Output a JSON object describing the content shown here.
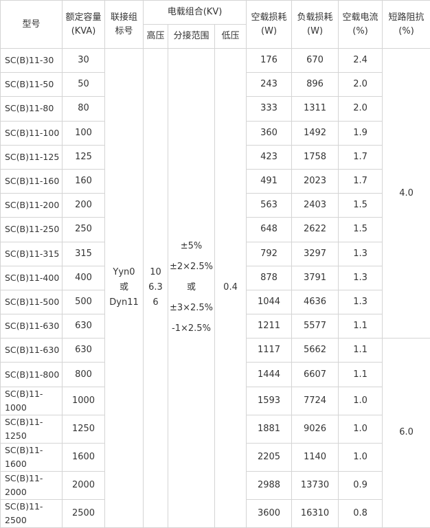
{
  "header": {
    "model": "型号",
    "capacity": [
      "额定容量",
      "(KVA)"
    ],
    "connection": [
      "联接组",
      "标号"
    ],
    "voltage_group": "电载组合(KV)",
    "high_voltage": "高压",
    "tap_range": "分接范围",
    "low_voltage": "低压",
    "no_load_loss": [
      "空载损耗",
      "(W)"
    ],
    "load_loss": [
      "负载损耗",
      "(W)"
    ],
    "no_load_current": [
      "空载电流",
      "(%)"
    ],
    "impedance": [
      "短路阻抗",
      "(%)"
    ]
  },
  "merged": {
    "connection": [
      "Yyn0",
      "或",
      "Dyn11"
    ],
    "high_voltage": [
      "10",
      "6.3",
      "6"
    ],
    "tap_range": [
      "±5%",
      "±2×2.5%",
      "或",
      "±3×2.5%",
      "-1×2.5%"
    ],
    "low_voltage": "0.4",
    "impedance_groups": [
      {
        "value": "4.0",
        "rows": 12
      },
      {
        "value": "6.0",
        "rows": 7
      }
    ]
  },
  "rows": [
    {
      "model": "SC(B)11-30",
      "capacity": "30",
      "no_load_loss": "176",
      "load_loss": "670",
      "no_load_current": "2.4"
    },
    {
      "model": "SC(B)11-50",
      "capacity": "50",
      "no_load_loss": "243",
      "load_loss": "896",
      "no_load_current": "2.0"
    },
    {
      "model": "SC(B)11-80",
      "capacity": "80",
      "no_load_loss": "333",
      "load_loss": "1311",
      "no_load_current": "2.0"
    },
    {
      "model": "SC(B)11-100",
      "capacity": "100",
      "no_load_loss": "360",
      "load_loss": "1492",
      "no_load_current": "1.9"
    },
    {
      "model": "SC(B)11-125",
      "capacity": "125",
      "no_load_loss": "423",
      "load_loss": "1758",
      "no_load_current": "1.7"
    },
    {
      "model": "SC(B)11-160",
      "capacity": "160",
      "no_load_loss": "491",
      "load_loss": "2023",
      "no_load_current": "1.7"
    },
    {
      "model": "SC(B)11-200",
      "capacity": "200",
      "no_load_loss": "563",
      "load_loss": "2403",
      "no_load_current": "1.5"
    },
    {
      "model": "SC(B)11-250",
      "capacity": "250",
      "no_load_loss": "648",
      "load_loss": "2622",
      "no_load_current": "1.5"
    },
    {
      "model": "SC(B)11-315",
      "capacity": "315",
      "no_load_loss": "792",
      "load_loss": "3297",
      "no_load_current": "1.3"
    },
    {
      "model": "SC(B)11-400",
      "capacity": "400",
      "no_load_loss": "878",
      "load_loss": "3791",
      "no_load_current": "1.3"
    },
    {
      "model": "SC(B)11-500",
      "capacity": "500",
      "no_load_loss": "1044",
      "load_loss": "4636",
      "no_load_current": "1.3"
    },
    {
      "model": "SC(B)11-630",
      "capacity": "630",
      "no_load_loss": "1211",
      "load_loss": "5577",
      "no_load_current": "1.1"
    },
    {
      "model": "SC(B)11-630",
      "capacity": "630",
      "no_load_loss": "1117",
      "load_loss": "5662",
      "no_load_current": "1.1"
    },
    {
      "model": "SC(B)11-800",
      "capacity": "800",
      "no_load_loss": "1444",
      "load_loss": "6607",
      "no_load_current": "1.1"
    },
    {
      "model": "SC(B)11-1000",
      "capacity": "1000",
      "no_load_loss": "1593",
      "load_loss": "7724",
      "no_load_current": "1.0"
    },
    {
      "model": "SC(B)11-1250",
      "capacity": "1250",
      "no_load_loss": "1881",
      "load_loss": "9026",
      "no_load_current": "1.0"
    },
    {
      "model": "SC(B)11-1600",
      "capacity": "1600",
      "no_load_loss": "2205",
      "load_loss": "1140",
      "no_load_current": "1.0"
    },
    {
      "model": "SC(B)11-2000",
      "capacity": "2000",
      "no_load_loss": "2988",
      "load_loss": "13730",
      "no_load_current": "0.9"
    },
    {
      "model": "SC(B)11-2500",
      "capacity": "2500",
      "no_load_loss": "3600",
      "load_loss": "16310",
      "no_load_current": "0.8"
    }
  ]
}
